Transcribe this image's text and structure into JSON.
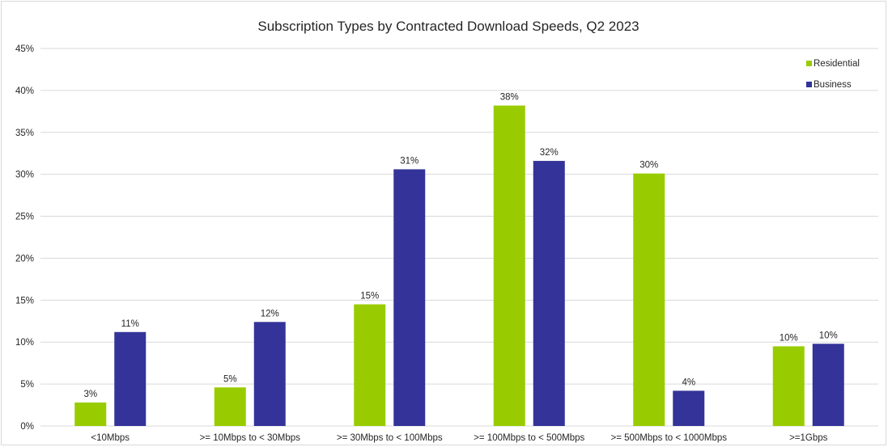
{
  "chart_data": {
    "type": "bar",
    "title": "Subscription Types by Contracted Download Speeds, Q2 2023",
    "xlabel": "",
    "ylabel": "",
    "ylim": [
      0,
      45
    ],
    "yticks": [
      "0%",
      "5%",
      "10%",
      "15%",
      "20%",
      "25%",
      "30%",
      "35%",
      "40%",
      "45%"
    ],
    "ytick_values": [
      0,
      5,
      10,
      15,
      20,
      25,
      30,
      35,
      40,
      45
    ],
    "categories": [
      "<10Mbps",
      ">= 10Mbps to < 30Mbps",
      ">= 30Mbps to < 100Mbps",
      ">= 100Mbps to < 500Mbps",
      ">= 500Mbps to < 1000Mbps",
      ">=1Gbps"
    ],
    "series": [
      {
        "name": "Residential",
        "color": "#99cc00",
        "values": [
          2.8,
          4.6,
          14.5,
          38.2,
          30.1,
          9.5
        ],
        "labels": [
          "3%",
          "5%",
          "15%",
          "38%",
          "30%",
          "10%"
        ]
      },
      {
        "name": "Business",
        "color": "#333399",
        "values": [
          11.2,
          12.4,
          30.6,
          31.6,
          4.2,
          9.8
        ],
        "labels": [
          "11%",
          "12%",
          "31%",
          "32%",
          "4%",
          "10%"
        ]
      }
    ],
    "grid": true,
    "legend": "top-right"
  }
}
